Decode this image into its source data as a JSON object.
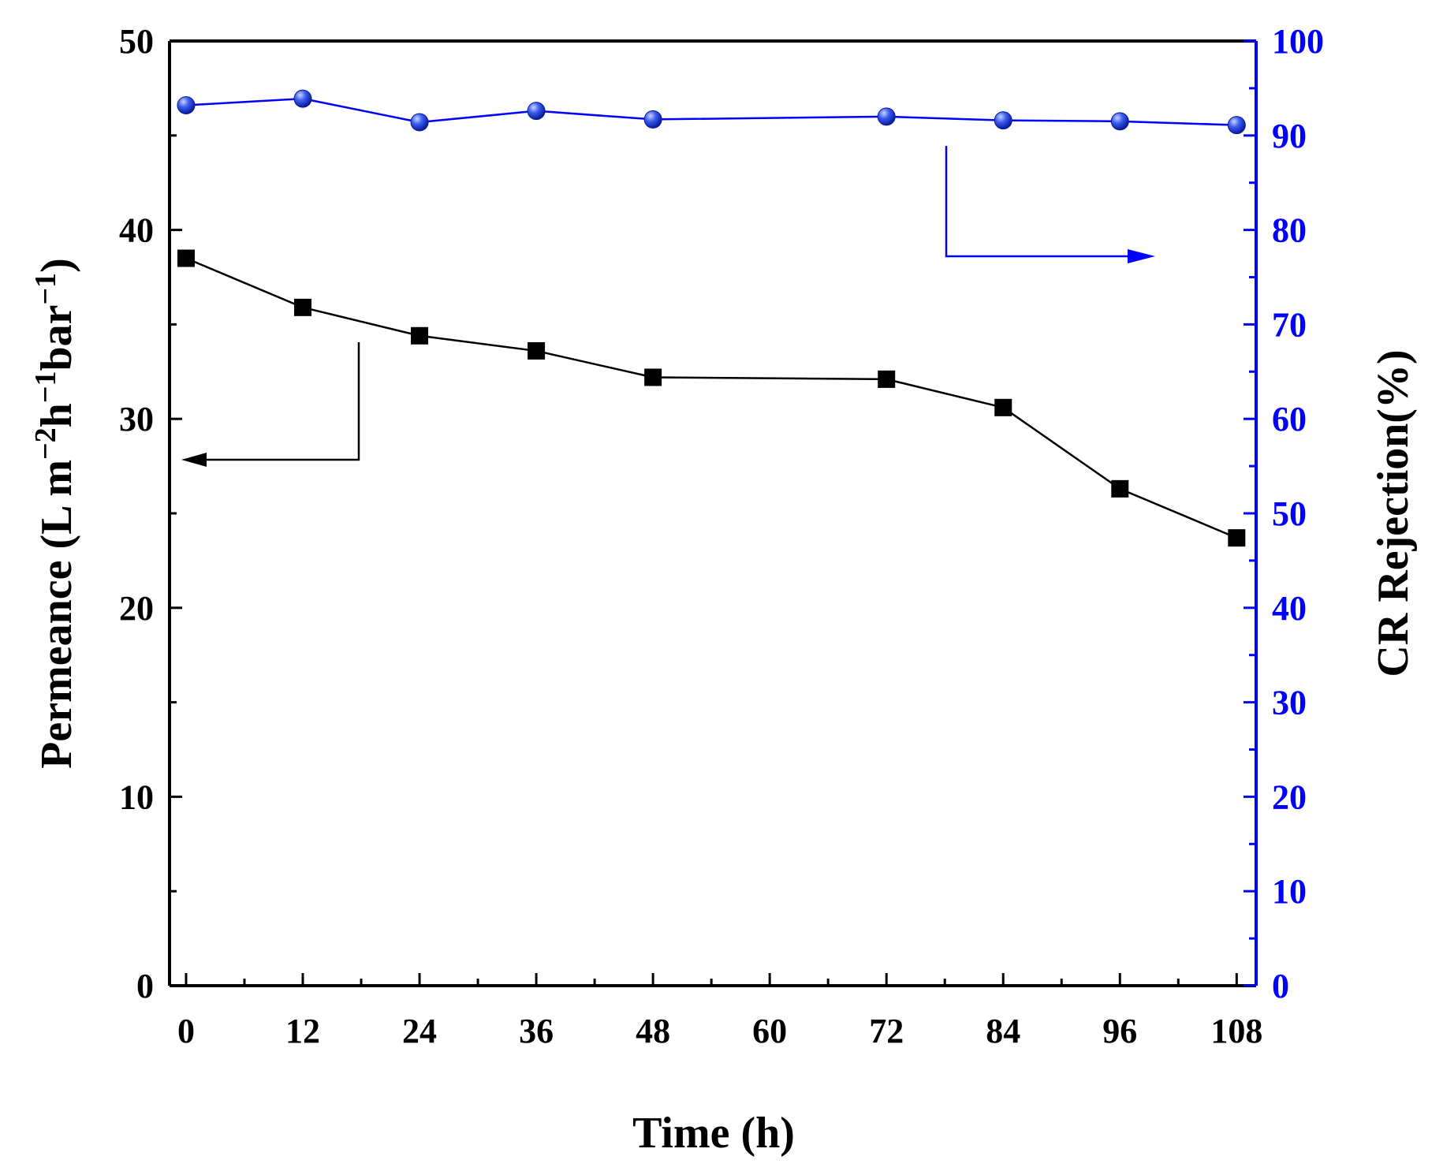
{
  "chart_data": {
    "type": "line",
    "title": "",
    "xlabel": "Time (h)",
    "ylabel_left": {
      "main": "Permeance (L m",
      "sup1": "−2",
      "mid1": "h",
      "sup2": "−1",
      "mid2": "bar",
      "sup3": "−1",
      "end": ")"
    },
    "ylabel_right": "CR Rejection(%)",
    "xlim": [
      -1.7,
      110
    ],
    "ylim_left": [
      0,
      50
    ],
    "ylim_right": [
      0,
      100
    ],
    "x_ticks": [
      0,
      12,
      24,
      36,
      48,
      60,
      72,
      84,
      96,
      108
    ],
    "x_tick_labels": [
      "0",
      "12",
      "24",
      "36",
      "48",
      "60",
      "72",
      "84",
      "96",
      "108"
    ],
    "y_left_ticks": [
      0,
      10,
      20,
      30,
      40,
      50
    ],
    "y_left_tick_labels": [
      "0",
      "10",
      "20",
      "30",
      "40",
      "50"
    ],
    "y_right_ticks": [
      0,
      10,
      20,
      30,
      40,
      50,
      60,
      70,
      80,
      90,
      100
    ],
    "y_right_tick_labels": [
      "0",
      "10",
      "20",
      "30",
      "40",
      "50",
      "60",
      "70",
      "80",
      "90",
      "100"
    ],
    "series": [
      {
        "name": "Permeance",
        "axis": "left",
        "color": "#000000",
        "marker": "square",
        "x": [
          0,
          12,
          24,
          36,
          48,
          72,
          84,
          96,
          108
        ],
        "values": [
          38.5,
          35.9,
          34.4,
          33.6,
          32.2,
          32.1,
          30.6,
          26.3,
          23.7
        ]
      },
      {
        "name": "CR Rejection",
        "axis": "right",
        "color": "#0000ff",
        "marker": "circle",
        "x": [
          0,
          12,
          24,
          36,
          48,
          72,
          84,
          96,
          108
        ],
        "values": [
          93.2,
          93.9,
          91.4,
          92.6,
          91.7,
          92.0,
          91.6,
          91.5,
          91.1
        ]
      }
    ],
    "annotations": [
      {
        "type": "arrow",
        "points_to": "left axis",
        "color": "#000000"
      },
      {
        "type": "arrow",
        "points_to": "right axis",
        "color": "#0000ff"
      }
    ],
    "colors": {
      "left_axis": "#000000",
      "right_axis": "#0000ff",
      "right_marker_fill": "#2a4bd8"
    }
  }
}
